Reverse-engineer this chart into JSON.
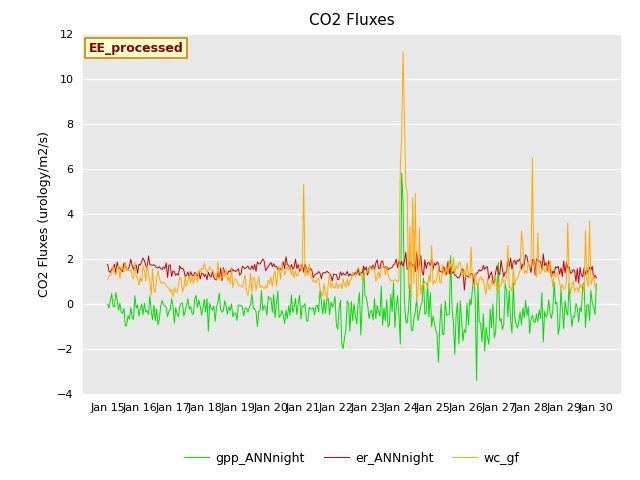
{
  "title": "CO2 Fluxes",
  "ylabel": "CO2 Fluxes (urology/m2/s)",
  "ylim": [
    -4,
    12
  ],
  "yticks": [
    -4,
    -2,
    0,
    2,
    4,
    6,
    8,
    10,
    12
  ],
  "n_points": 360,
  "xtick_labels": [
    "Jan 15",
    "Jan 16",
    "Jan 17",
    "Jan 18",
    "Jan 19",
    "Jan 20",
    "Jan 21",
    "Jan 22",
    "Jan 23",
    "Jan 24",
    "Jan 25",
    "Jan 26",
    "Jan 27",
    "Jan 28",
    "Jan 29",
    "Jan 30"
  ],
  "colors": {
    "gpp": "#00dd00",
    "er": "#cc0000",
    "wc": "#ffaa00"
  },
  "legend_labels": [
    "gpp_ANNnight",
    "er_ANNnight",
    "wc_gf"
  ],
  "annotation_text": "EE_processed",
  "bg_color": "#e8e8e8",
  "linewidth": 0.7,
  "title_fontsize": 11,
  "label_fontsize": 9,
  "tick_fontsize": 8,
  "legend_fontsize": 9
}
